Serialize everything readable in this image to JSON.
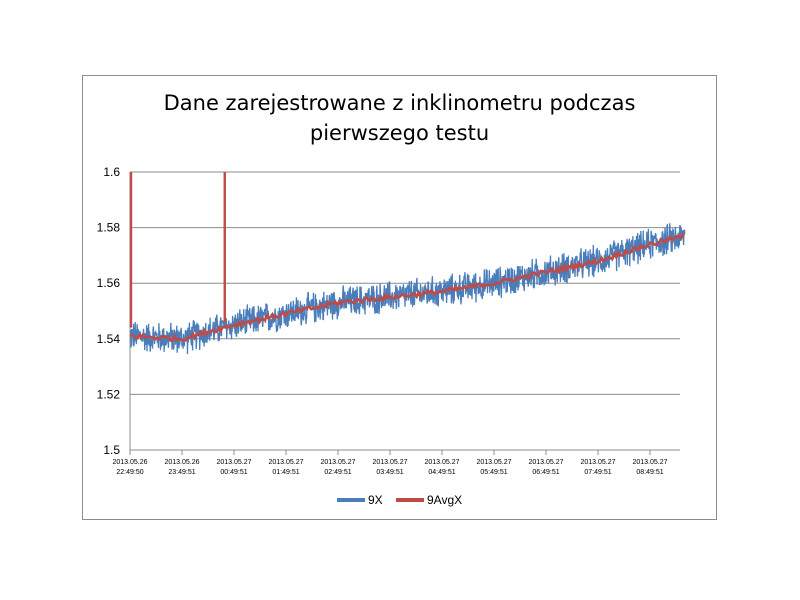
{
  "chart_data": {
    "type": "line",
    "title_line1": "Dane zarejestrowane z inklinometru podczas",
    "title_line2": "pierwszego testu",
    "xlabel": "",
    "ylabel": "",
    "ylim": [
      1.5,
      1.6
    ],
    "y_ticks": [
      "1.5",
      "1.52",
      "1.54",
      "1.56",
      "1.58",
      "1.6"
    ],
    "x_ticks": [
      [
        "2013.05.26",
        "22:49:50"
      ],
      [
        "2013.05.26",
        "23:49:51"
      ],
      [
        "2013.05.27",
        "00:49:51"
      ],
      [
        "2013.05.27",
        "01:49:51"
      ],
      [
        "2013.05.27",
        "02:49:51"
      ],
      [
        "2013.05.27",
        "03:49:51"
      ],
      [
        "2013.05.27",
        "04:49:51"
      ],
      [
        "2013.05.27",
        "05:49:51"
      ],
      [
        "2013.05.27",
        "06:49:51"
      ],
      [
        "2013.05.27",
        "07:49:51"
      ],
      [
        "2013.05.27",
        "08:49:51"
      ]
    ],
    "grid": "horizontal",
    "legend_position": "bottom",
    "series": [
      {
        "name": "9X",
        "color": "#4a7ebb",
        "trend_x": [
          "22:49:50",
          "23:49:51",
          "00:49:51",
          "01:49:51",
          "02:49:51",
          "03:49:51",
          "04:49:51",
          "05:49:51",
          "06:49:51",
          "07:49:51",
          "08:49:51",
          "09:30"
        ],
        "trend_y": [
          1.541,
          1.54,
          1.545,
          1.549,
          1.553,
          1.555,
          1.557,
          1.56,
          1.564,
          1.568,
          1.574,
          1.577
        ],
        "noise_amplitude": 0.006
      },
      {
        "name": "9AvgX",
        "color": "#be4b48",
        "trend_x": [
          "22:49:50",
          "23:49:51",
          "00:49:51",
          "01:49:51",
          "02:49:51",
          "03:49:51",
          "04:49:51",
          "05:49:51",
          "06:49:51",
          "07:49:51",
          "08:49:51",
          "09:30"
        ],
        "trend_y": [
          1.541,
          1.54,
          1.545,
          1.549,
          1.553,
          1.555,
          1.557,
          1.56,
          1.564,
          1.568,
          1.574,
          1.577
        ],
        "spikes": [
          {
            "x": "22:49:50",
            "from": 1.544,
            "to": 1.6
          },
          {
            "x": "00:38",
            "from": 1.546,
            "to": 1.6
          }
        ]
      }
    ]
  }
}
